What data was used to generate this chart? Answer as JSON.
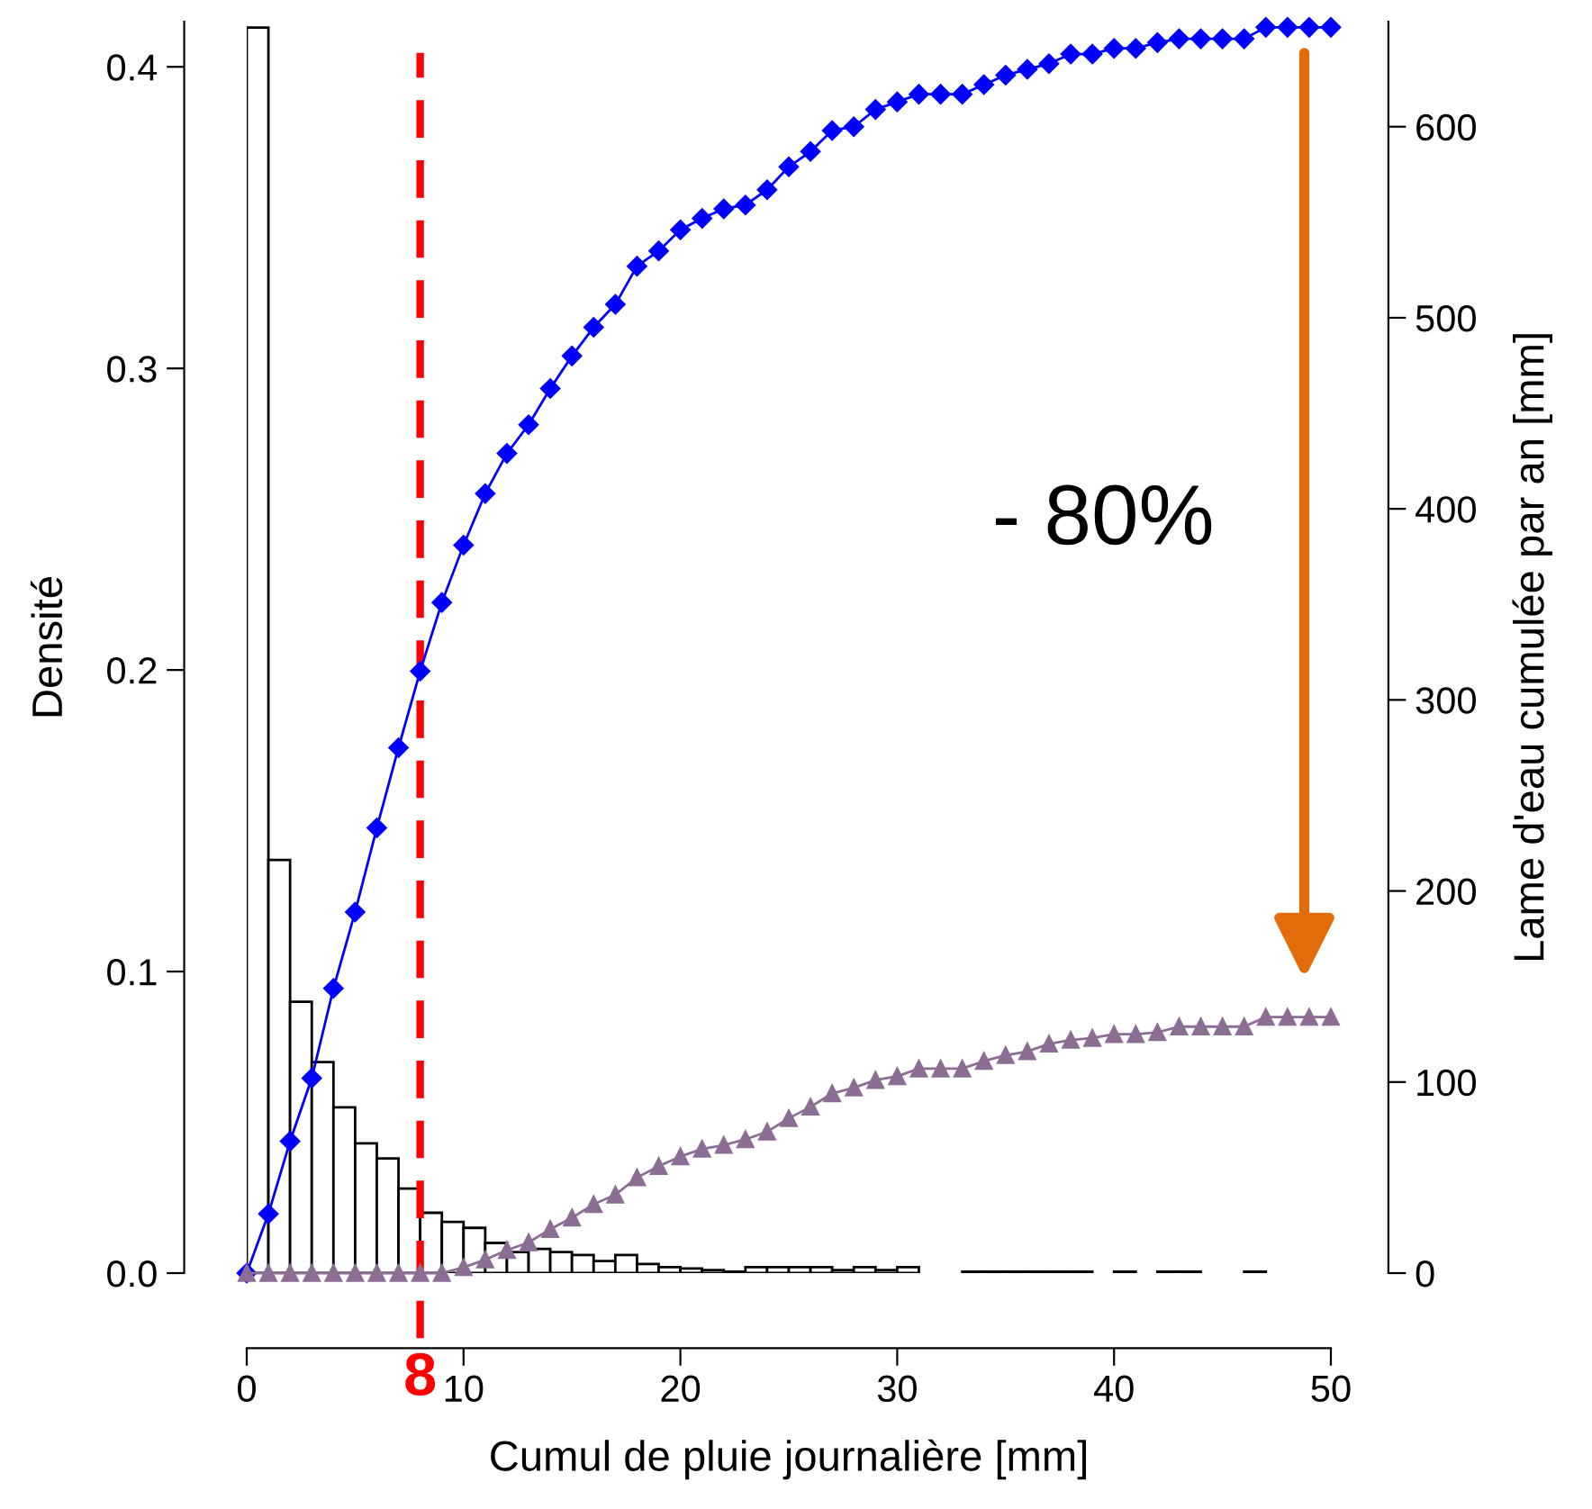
{
  "chart_data": {
    "type": "histogram",
    "xlabel": "Cumul de pluie journalière [mm]",
    "ylabel": "Densité",
    "y2label": "Lame d'eau cumulée par an [mm]",
    "bins": [
      0,
      1,
      2,
      3,
      4,
      5,
      6,
      7,
      8,
      9,
      10,
      11,
      12,
      13,
      14,
      15,
      16,
      17,
      18,
      19,
      20,
      21,
      22,
      23,
      24,
      25,
      26,
      27,
      28,
      29,
      30,
      31,
      32,
      33,
      34,
      35,
      36,
      37,
      38,
      39,
      40,
      41,
      42,
      43,
      44,
      45,
      46,
      47
    ],
    "values": [
      0.413,
      0.137,
      0.09,
      0.07,
      0.055,
      0.043,
      0.038,
      0.028,
      0.02,
      0.017,
      0.015,
      0.01,
      0.007,
      0.008,
      0.007,
      0.006,
      0.004,
      0.006,
      0.003,
      0.002,
      0.0015,
      0.001,
      0.0005,
      0.002,
      0.002,
      0.002,
      0.002,
      0.001,
      0.002,
      0.001,
      0.002,
      0,
      0,
      0.0005,
      0.0005,
      0.0005,
      0.0005,
      0.0005,
      0.0005,
      0,
      0.0005,
      0,
      0.0005,
      0.0005,
      0,
      0,
      0.0005
    ],
    "color": "#ffffff",
    "series": [
      {
        "type": "line",
        "axis": "y2",
        "color": "#0000ff",
        "marker": "diamond",
        "x": [
          0,
          1,
          2,
          3,
          4,
          5,
          6,
          7,
          8,
          9,
          10,
          11,
          12,
          13,
          14,
          15,
          16,
          17,
          18,
          19,
          20,
          21,
          22,
          23,
          24,
          25,
          26,
          27,
          28,
          29,
          30,
          31,
          32,
          33,
          34,
          35,
          36,
          37,
          38,
          39,
          40,
          41,
          42,
          43,
          44,
          45,
          46,
          47,
          48,
          49,
          50
        ],
        "values": [
          0,
          31,
          69,
          102,
          149,
          189,
          233,
          275,
          315,
          351,
          381,
          408,
          429,
          444,
          463,
          480,
          495,
          507,
          527,
          535,
          546,
          552,
          557,
          559,
          567,
          579,
          587,
          598,
          600,
          609,
          613,
          617,
          617,
          617,
          622,
          627,
          630,
          633,
          638,
          638,
          641,
          641,
          644,
          646,
          646,
          646,
          646,
          652,
          652,
          652,
          652
        ]
      },
      {
        "type": "line",
        "axis": "y2",
        "color": "#8c6d93",
        "marker": "triangle",
        "x": [
          0,
          1,
          2,
          3,
          4,
          5,
          6,
          7,
          8,
          9,
          10,
          11,
          12,
          13,
          14,
          15,
          16,
          17,
          18,
          19,
          20,
          21,
          22,
          23,
          24,
          25,
          26,
          27,
          28,
          29,
          30,
          31,
          32,
          33,
          34,
          35,
          36,
          37,
          38,
          39,
          40,
          41,
          42,
          43,
          44,
          45,
          46,
          47,
          48,
          49,
          50
        ],
        "values": [
          0,
          0,
          0,
          0,
          0,
          0,
          0,
          0,
          0,
          0,
          3,
          7,
          12,
          16,
          23,
          29,
          36,
          41,
          50,
          56,
          61,
          65,
          67,
          70,
          74,
          81,
          87,
          94,
          97,
          101,
          103,
          107,
          107,
          107,
          111,
          114,
          116,
          120,
          122,
          123,
          125,
          125,
          126,
          129,
          129,
          129,
          129,
          134,
          134,
          134,
          134
        ]
      }
    ],
    "ref_lines": [
      {
        "axis": "x",
        "value": 8,
        "label": "8",
        "color": "#ff0000",
        "line_style": "dashed"
      }
    ],
    "annotations": [
      "- 80%"
    ],
    "xlim": [
      0,
      50
    ],
    "xticks": [
      0,
      10,
      20,
      30,
      40,
      50
    ],
    "ylim": [
      0,
      0.415
    ],
    "yticks": [
      {
        "value": 0,
        "label": "0.0"
      },
      {
        "value": 0.1,
        "label": "0.1"
      },
      {
        "value": 0.2,
        "label": "0.2"
      },
      {
        "value": 0.3,
        "label": "0.3"
      },
      {
        "value": 0.4,
        "label": "0.4"
      }
    ],
    "y2lim": [
      0,
      655
    ],
    "y2ticks": [
      0,
      100,
      200,
      300,
      400,
      500,
      600
    ],
    "grid": false,
    "legend": false
  }
}
